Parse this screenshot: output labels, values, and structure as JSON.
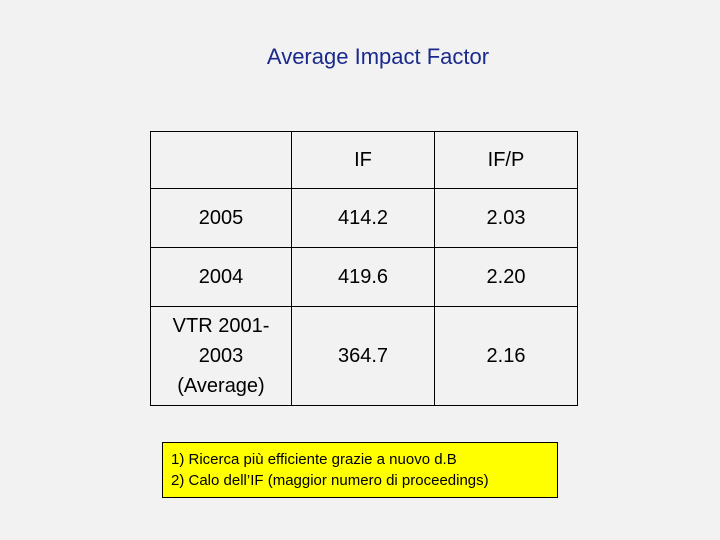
{
  "title": "Average Impact Factor",
  "table": {
    "headers": [
      "",
      "IF",
      "IF/P"
    ],
    "rows": [
      {
        "label": "2005",
        "if": "414.2",
        "ifp": "2.03"
      },
      {
        "label": "2004",
        "if": "419.6",
        "ifp": "2.20"
      },
      {
        "label_lines": [
          "VTR 2001-",
          "2003",
          "(Average)"
        ],
        "if": "364.7",
        "ifp": "2.16"
      }
    ]
  },
  "note": {
    "lines": [
      "1) Ricerca più efficiente grazie a nuovo d.B",
      "2) Calo dell’IF (maggior numero di proceedings)"
    ],
    "background": "#ffff00"
  },
  "colors": {
    "title": "#1a2a8c",
    "background": "#f2f2f2"
  }
}
